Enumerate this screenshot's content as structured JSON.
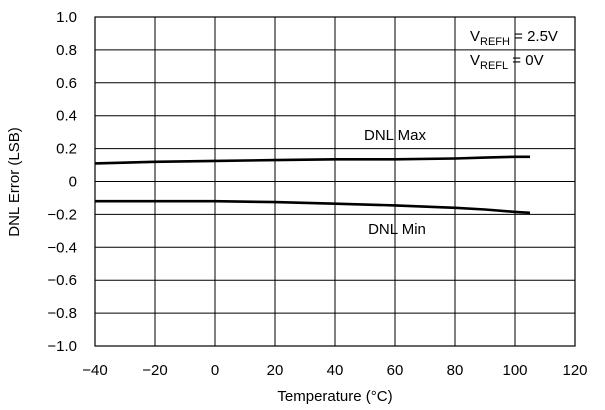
{
  "chart_data": {
    "type": "line",
    "title": "",
    "xlabel": "Temperature (°C)",
    "ylabel": "DNL Error (LSB)",
    "xlim": [
      -40,
      120
    ],
    "ylim": [
      -1.0,
      1.0
    ],
    "grid": true,
    "xticks": [
      -40,
      -20,
      0,
      20,
      40,
      60,
      80,
      100,
      120
    ],
    "yticks": [
      1.0,
      0.8,
      0.6,
      0.4,
      0.2,
      0,
      -0.2,
      -0.4,
      -0.6,
      -0.8,
      -1.0
    ],
    "xtick_labels": [
      "−40",
      "−20",
      "0",
      "20",
      "40",
      "60",
      "80",
      "100",
      "120"
    ],
    "ytick_labels": [
      "1.0",
      "0.8",
      "0.6",
      "0.4",
      "0.2",
      "0",
      "−0.2",
      "−0.4",
      "−0.6",
      "−0.8",
      "−1.0"
    ],
    "series": [
      {
        "name": "DNL Max",
        "x": [
          -40,
          -20,
          0,
          20,
          40,
          60,
          80,
          90,
          100,
          105
        ],
        "y": [
          0.11,
          0.12,
          0.125,
          0.13,
          0.135,
          0.135,
          0.14,
          0.145,
          0.15,
          0.15
        ]
      },
      {
        "name": "DNL Min",
        "x": [
          -40,
          -20,
          0,
          20,
          40,
          60,
          80,
          90,
          100,
          105
        ],
        "y": [
          -0.12,
          -0.12,
          -0.12,
          -0.125,
          -0.135,
          -0.145,
          -0.16,
          -0.17,
          -0.185,
          -0.19
        ]
      }
    ],
    "annotations": {
      "vrefh_main": "V",
      "vrefh_sub": "REFH",
      "vrefh_value": " = 2.5V",
      "vrefl_main": "V",
      "vrefl_sub": "REFL",
      "vrefl_value": " = 0V"
    }
  }
}
